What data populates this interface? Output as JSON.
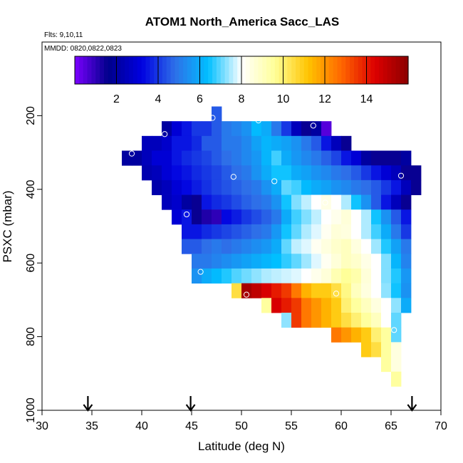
{
  "chart_data": {
    "type": "heatmap",
    "title": "ATOM1 North_America Sacc_LAS",
    "flights_label": "Flts: 9,10,11",
    "dates_label": "MMDD: 0820,0822,0823",
    "xlabel": "Latitude (deg N)",
    "ylabel": "PSXC (mbar)",
    "xlim": [
      30,
      70
    ],
    "ylim": [
      1000,
      0
    ],
    "x_ticks": [
      "30",
      "35",
      "40",
      "45",
      "50",
      "55",
      "60",
      "65",
      "70"
    ],
    "y_ticks": [
      "200",
      "400",
      "600",
      "800",
      "1000"
    ],
    "colorbar": {
      "range": [
        0,
        16
      ],
      "ticks": [
        "2",
        "4",
        "6",
        "8",
        "10",
        "12",
        "14"
      ],
      "stops": [
        "#7b00ff",
        "#00008b",
        "#0000e0",
        "#2e6fe8",
        "#00bfff",
        "#ffffff",
        "#ffff99",
        "#ffc400",
        "#ff6600",
        "#dd0000",
        "#8b0000"
      ]
    },
    "cell_width_deg": 1,
    "cell_height_mbar": 40,
    "rows": [
      {
        "p": 195,
        "lat_start": 47,
        "values": [
          4.5
        ]
      },
      {
        "p": 235,
        "lat_start": 42,
        "values": [
          2,
          3,
          3.5,
          4,
          4,
          4.5,
          5,
          5.2,
          5.5,
          6.3,
          6,
          5,
          4,
          2.5,
          1.5,
          2,
          0.5
        ]
      },
      {
        "p": 275,
        "lat_start": 40,
        "values": [
          2.5,
          2.5,
          2.8,
          3.5,
          3.5,
          3.8,
          4.5,
          4.5,
          5,
          5,
          5.3,
          5.8,
          6.2,
          6,
          5.8,
          5.5,
          5,
          4.5,
          3.5,
          2.5,
          1.5
        ]
      },
      {
        "p": 315,
        "lat_start": 38,
        "values": [
          2,
          2,
          2.5,
          3,
          3,
          3.5,
          3.8,
          4,
          4.2,
          4.5,
          4.8,
          5,
          5.3,
          5.6,
          6.2,
          6.8,
          6,
          5.6,
          5.3,
          5,
          4.6,
          4.2,
          3.5,
          3,
          2,
          1.5,
          1.5,
          1.5,
          2
        ]
      },
      {
        "p": 355,
        "lat_start": 40,
        "values": [
          2.3,
          2.5,
          3,
          3.3,
          3.5,
          3.8,
          4,
          4.2,
          4.5,
          4.8,
          5,
          5.5,
          6,
          6.5,
          6.5,
          6,
          5.8,
          5.5,
          5.3,
          5,
          4.8,
          4.5,
          4,
          3.5,
          3,
          2.5,
          1.5,
          1.5
        ]
      },
      {
        "p": 395,
        "lat_start": 41,
        "values": [
          2.2,
          2.5,
          3,
          3.3,
          3.6,
          3.9,
          4.2,
          4.4,
          4.6,
          4.8,
          5,
          5.5,
          6,
          7,
          6.8,
          6.3,
          6,
          5.8,
          5.5,
          5.3,
          5,
          4.8,
          4.5,
          4,
          3.5,
          2.5,
          1.5
        ]
      },
      {
        "p": 435,
        "lat_start": 42,
        "values": [
          2.5,
          2.8,
          2,
          1.5,
          3.5,
          3.8,
          4,
          4.3,
          4.6,
          4.8,
          5,
          5.5,
          6.5,
          7.2,
          7.6,
          8,
          8.4,
          8,
          7.5,
          6.5,
          5.5,
          4.5,
          3.5,
          2.5,
          1.5
        ]
      },
      {
        "p": 475,
        "lat_start": 43,
        "values": [
          3,
          3.5,
          1.5,
          1.2,
          1,
          3.3,
          3.6,
          4,
          4.3,
          4.6,
          5,
          6,
          6.8,
          7.2,
          7.6,
          8,
          8.3,
          8.6,
          8,
          7.5,
          6.5,
          5.5,
          4.5,
          3.5
        ]
      },
      {
        "p": 515,
        "lat_start": 44,
        "values": [
          3.5,
          3.5,
          3.8,
          4,
          4.2,
          4.4,
          4.6,
          4.8,
          5,
          5.6,
          6.5,
          7,
          7.5,
          7.8,
          8.2,
          8.6,
          8.5,
          8,
          7.5,
          6.8,
          6,
          5,
          4
        ]
      },
      {
        "p": 555,
        "lat_start": 44,
        "values": [
          4.5,
          4.5,
          4.8,
          5,
          4.8,
          5,
          5.2,
          5.4,
          5.6,
          6,
          7,
          7.6,
          7.8,
          8.2,
          8.5,
          8.8,
          9,
          8.5,
          8,
          7.4,
          6.6,
          5.8,
          5
        ]
      },
      {
        "p": 595,
        "lat_start": 45,
        "values": [
          5,
          5,
          5.2,
          5.4,
          5.6,
          5.8,
          6,
          6.2,
          6.4,
          6.7,
          7,
          7.4,
          7.8,
          8.2,
          8.6,
          9,
          8.8,
          8.4,
          8,
          7.2,
          6.2,
          5.2
        ]
      },
      {
        "p": 635,
        "lat_start": 45,
        "values": [
          5.5,
          6,
          6.3,
          6.6,
          6.9,
          7.1,
          7.3,
          7.5,
          7.6,
          7.7,
          7.8,
          8,
          8.3,
          8.6,
          9.2,
          9.6,
          9.3,
          8.6,
          8,
          7.2,
          6.6,
          5.6
        ]
      },
      {
        "p": 675,
        "lat_start": 49,
        "values": [
          10.5,
          15.5,
          15,
          14.5,
          14,
          13.5,
          12.5,
          11.5,
          11,
          11,
          10.5,
          9.8,
          9,
          8.5,
          8,
          7.3,
          6.5,
          5.5
        ]
      },
      {
        "p": 715,
        "lat_start": 52,
        "values": [
          9.5,
          14.5,
          14,
          13.5,
          12.5,
          12,
          11.5,
          11,
          10,
          9.5,
          9,
          8.5,
          8,
          7.3,
          6
        ]
      },
      {
        "p": 755,
        "lat_start": 54,
        "values": [
          7.3,
          13.5,
          12.5,
          12,
          11.5,
          11,
          10.5,
          10,
          9.5,
          9,
          8,
          7
        ]
      },
      {
        "p": 795,
        "lat_start": 59,
        "values": [
          12.5,
          12,
          11.5,
          11,
          10,
          9.5,
          7
        ]
      },
      {
        "p": 835,
        "lat_start": 62,
        "values": [
          11,
          10.5,
          9.5,
          8.5
        ]
      },
      {
        "p": 875,
        "lat_start": 64,
        "values": [
          9.5,
          8.5
        ]
      },
      {
        "p": 915,
        "lat_start": 65,
        "values": [
          9.5
        ]
      }
    ],
    "sample_points": [
      [
        39,
        303
      ],
      [
        42.3,
        250
      ],
      [
        47.1,
        206
      ],
      [
        51.7,
        213
      ],
      [
        57.2,
        227
      ],
      [
        49.2,
        366
      ],
      [
        53.3,
        378
      ],
      [
        58.4,
        436
      ],
      [
        66,
        363
      ],
      [
        44.5,
        468
      ],
      [
        45.9,
        624
      ],
      [
        50.5,
        686
      ],
      [
        59.5,
        683
      ],
      [
        65.3,
        782
      ]
    ],
    "flight_arrows_lat": [
      34.6,
      44.9,
      67.1
    ]
  }
}
